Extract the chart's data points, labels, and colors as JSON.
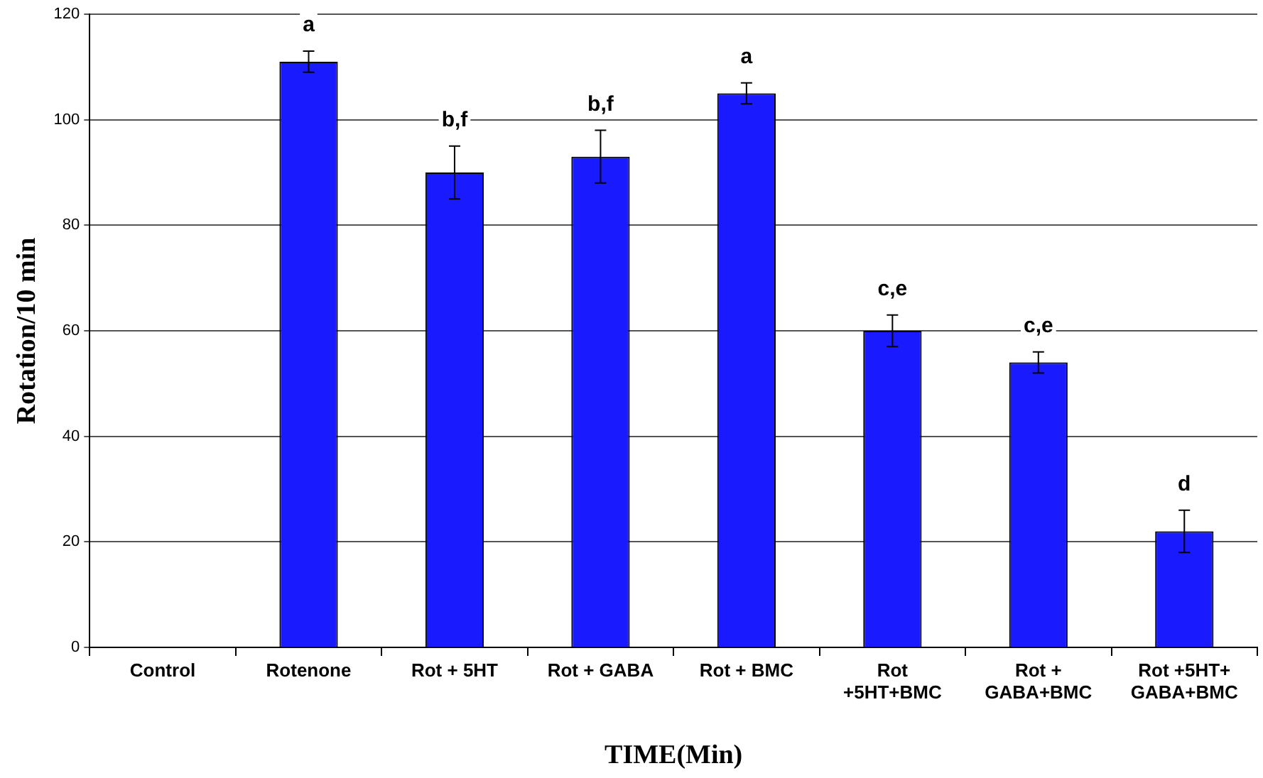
{
  "chart_data": {
    "type": "bar",
    "xlabel": "TIME(Min)",
    "ylabel": "Rotation/10 min",
    "categories": [
      "Control",
      "Rotenone",
      "Rot + 5HT",
      "Rot + GABA",
      "Rot + BMC",
      "Rot\n+5HT+BMC",
      "Rot +\nGABA+BMC",
      "Rot +5HT+\nGABA+BMC"
    ],
    "values": [
      0,
      111,
      90,
      93,
      105,
      60,
      54,
      22
    ],
    "errors": [
      null,
      2,
      5,
      5,
      2,
      3,
      2,
      4
    ],
    "color": "#1a1aff",
    "ylim": [
      0,
      120
    ],
    "yticks": [
      0,
      20,
      40,
      60,
      80,
      100,
      120
    ],
    "grid": "y",
    "value_labels": [
      null,
      "a",
      "b,f",
      "b,f",
      "a",
      "c,e",
      "c,e",
      "d"
    ]
  }
}
